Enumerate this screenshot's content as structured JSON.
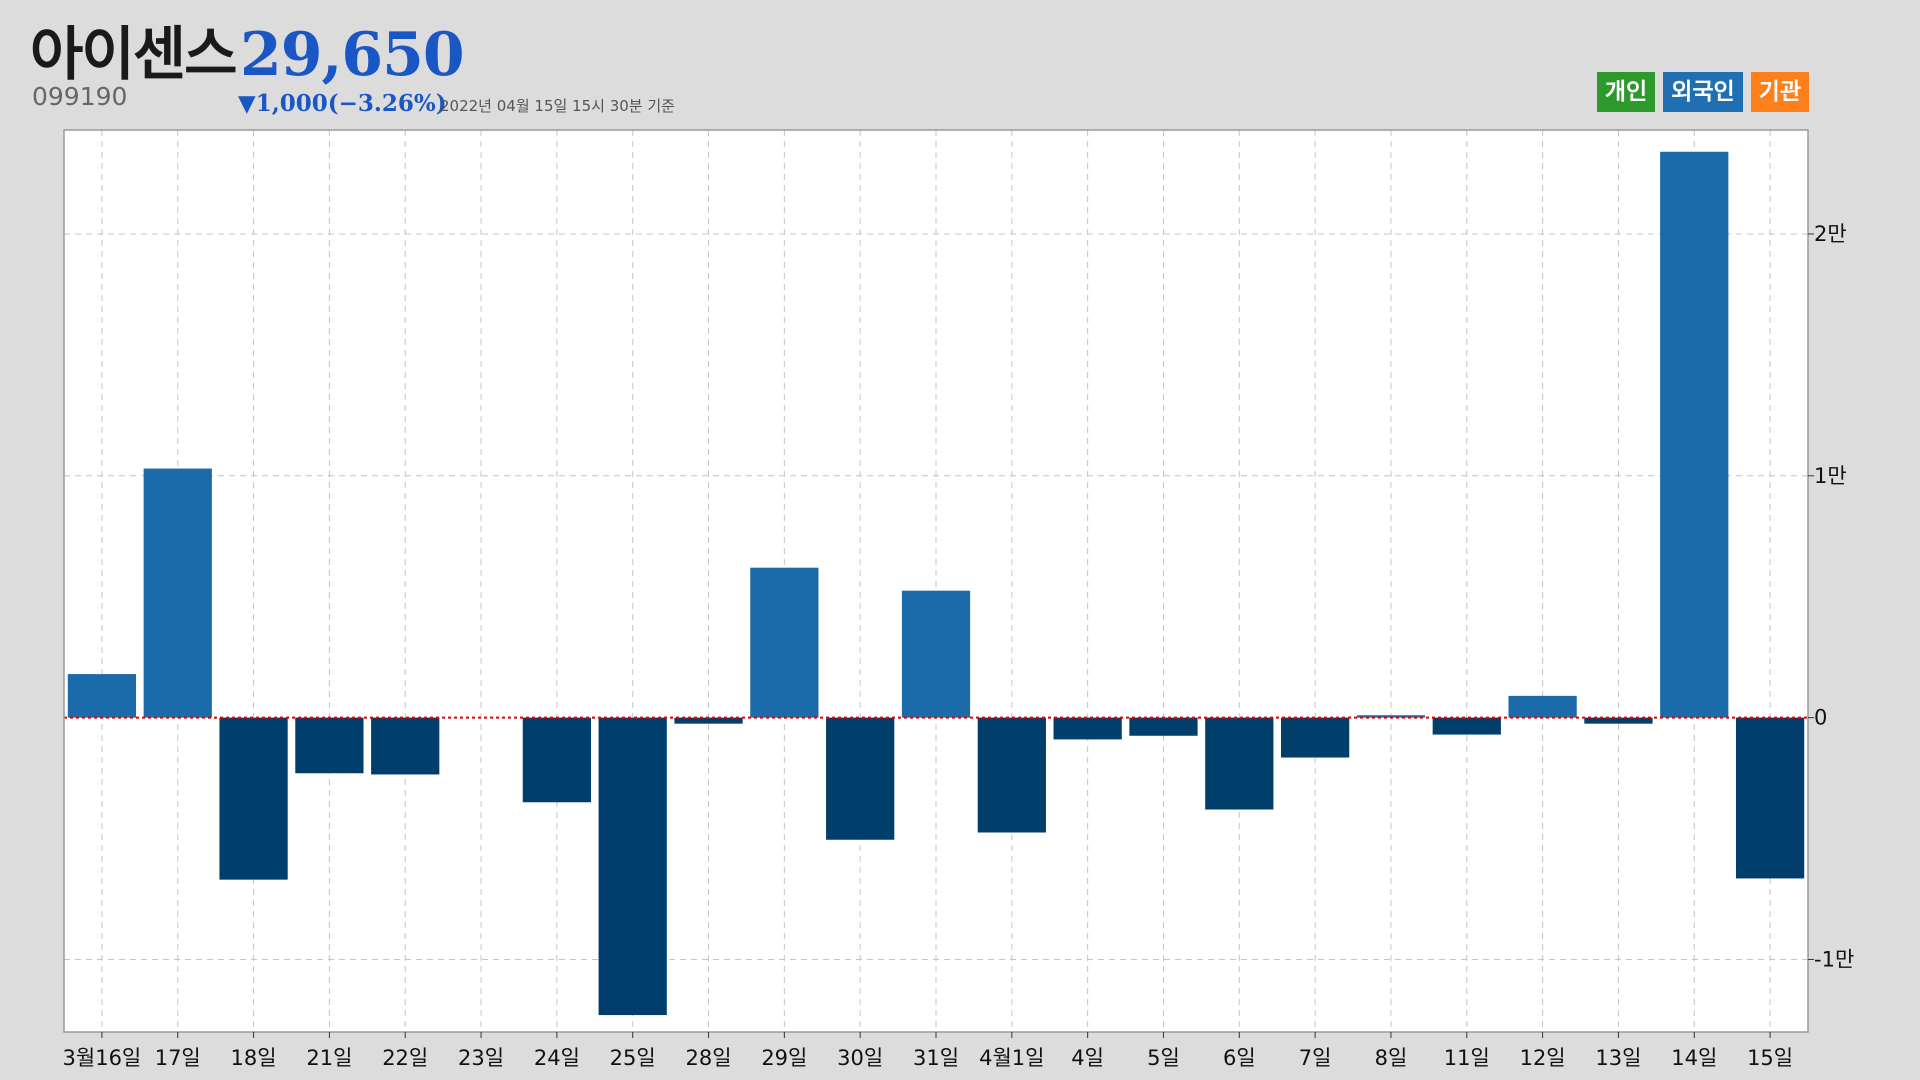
{
  "header": {
    "stock_name": "아이센스",
    "stock_code": "099190",
    "price": "29,650",
    "change": "▼1,000(−3.26%)",
    "timestamp": "2022년 04월 15일 15시 30분 기준"
  },
  "legend": [
    {
      "label": "개인",
      "color": "#2b9a2b"
    },
    {
      "label": "외국인",
      "color": "#1f6fb2"
    },
    {
      "label": "기관",
      "color": "#ff7f1a"
    }
  ],
  "colors": {
    "positive_bar": "#1b6aa9",
    "negative_bar": "#003f6b",
    "zero_line": "#e00000",
    "grid": "#c4c4c4"
  },
  "chart_data": {
    "type": "bar",
    "series_name": "외국인",
    "categories": [
      "3월16일",
      "17일",
      "18일",
      "21일",
      "22일",
      "23일",
      "24일",
      "25일",
      "28일",
      "29일",
      "30일",
      "31일",
      "4월1일",
      "4일",
      "5일",
      "6일",
      "7일",
      "8일",
      "11일",
      "12일",
      "13일",
      "14일",
      "15일"
    ],
    "values": [
      1800,
      10300,
      -6700,
      -2300,
      -2350,
      0,
      -3500,
      -12300,
      -250,
      6200,
      -5050,
      5250,
      -4750,
      -900,
      -750,
      -3800,
      -1650,
      100,
      -700,
      900,
      -250,
      23400,
      -6650
    ],
    "ylim": [
      -13000,
      24300
    ],
    "yticks": [
      {
        "value": 20000,
        "label": "2만"
      },
      {
        "value": 10000,
        "label": "1만"
      },
      {
        "value": 0,
        "label": "0"
      },
      {
        "value": -10000,
        "label": "-1만"
      }
    ],
    "grid": true,
    "legend_position": "top-right"
  }
}
